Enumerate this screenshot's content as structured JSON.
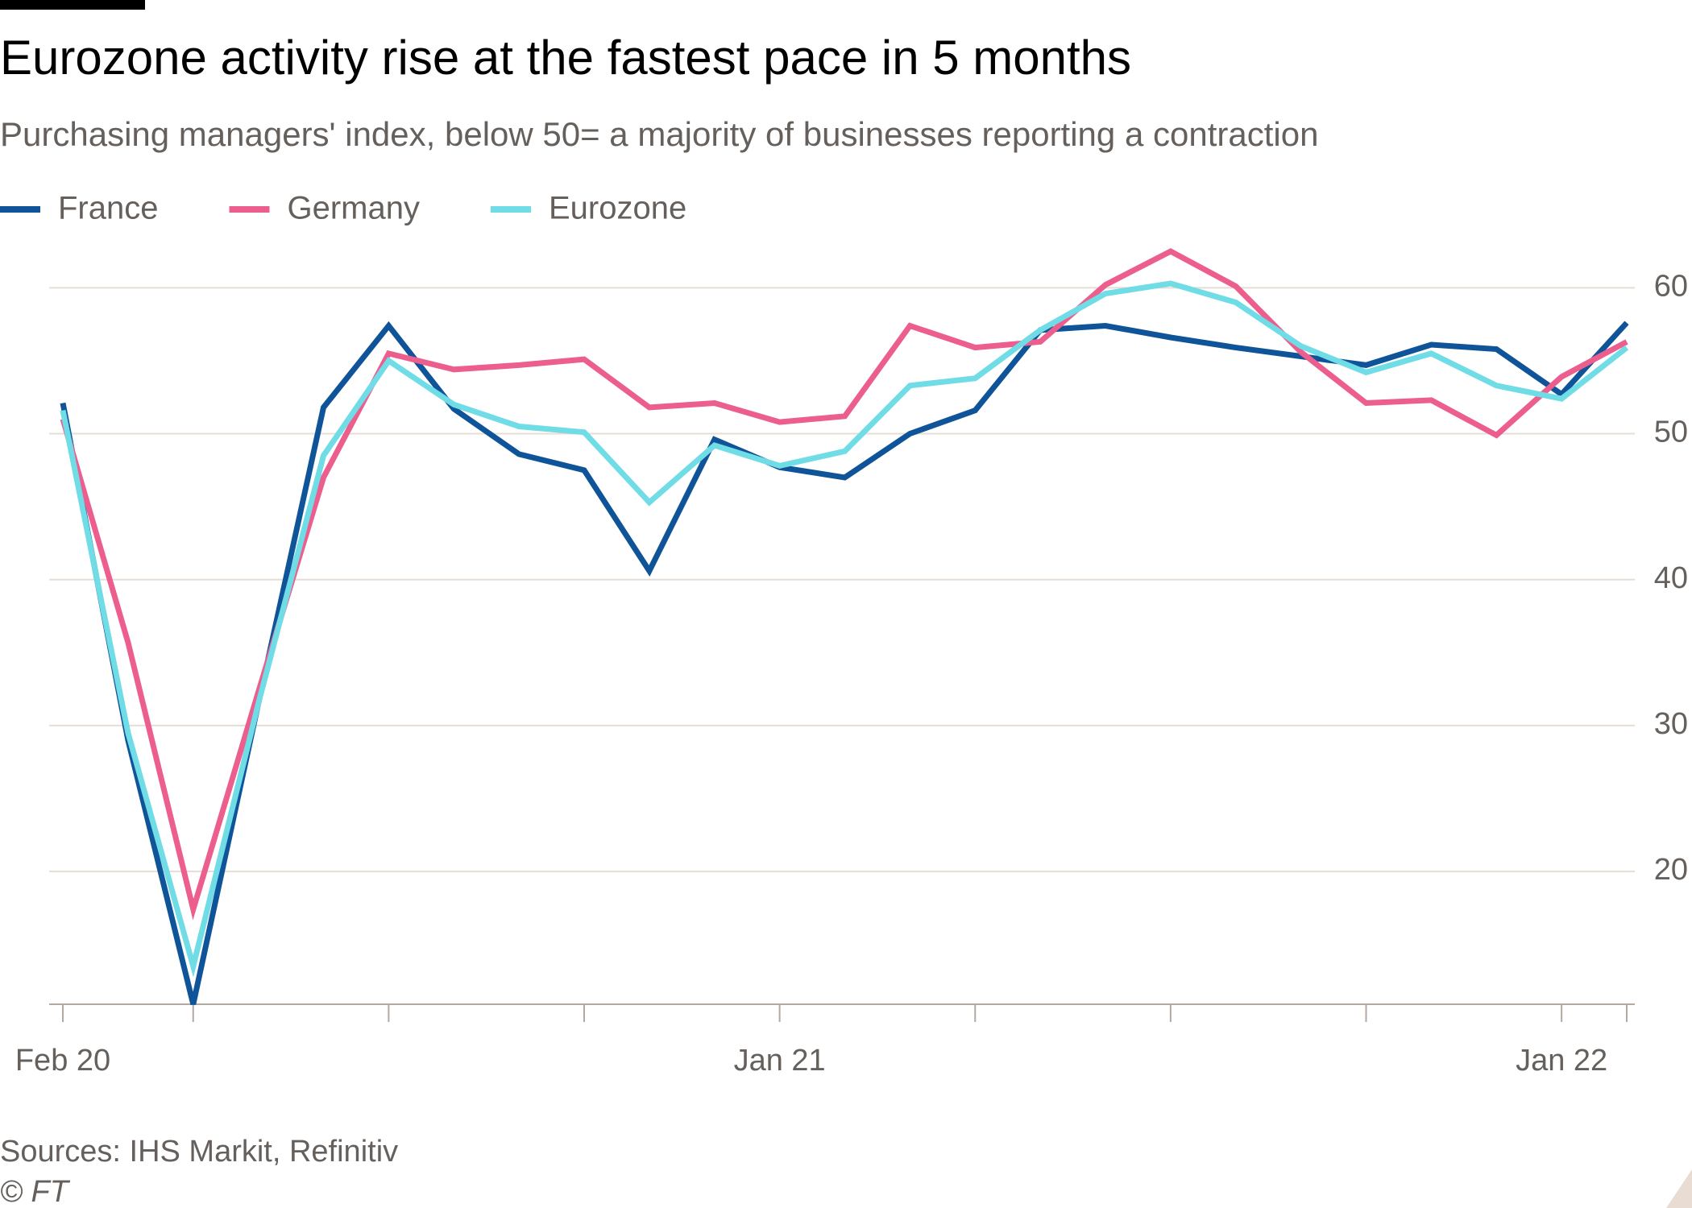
{
  "chart_data": {
    "type": "line",
    "title": "Eurozone activity rise at the fastest pace in 5 months",
    "subtitle": "Purchasing managers' index, below 50= a majority of businesses reporting a contraction",
    "source": "Sources: IHS Markit, Refinitiv",
    "credit": "© FT",
    "categories": [
      "Feb 20",
      null,
      null,
      null,
      null,
      null,
      null,
      null,
      null,
      null,
      null,
      "Jan 21",
      null,
      null,
      null,
      null,
      null,
      null,
      null,
      null,
      null,
      null,
      null,
      "Jan 22",
      null
    ],
    "series": [
      {
        "name": "France",
        "color": "#0f5499",
        "values": [
          52.1,
          29.0,
          10.9,
          31.5,
          51.8,
          57.4,
          51.7,
          48.6,
          47.5,
          40.6,
          49.6,
          47.7,
          47.0,
          50.0,
          51.6,
          57.1,
          57.4,
          56.6,
          55.9,
          55.3,
          54.7,
          56.1,
          55.8,
          52.7,
          57.6
        ]
      },
      {
        "name": "Germany",
        "color": "#eb5e8d",
        "values": [
          51.0,
          35.7,
          17.4,
          32.3,
          47.0,
          55.5,
          54.4,
          54.7,
          55.1,
          51.8,
          52.1,
          50.8,
          51.2,
          57.4,
          55.9,
          56.3,
          60.2,
          62.5,
          60.1,
          55.6,
          52.1,
          52.3,
          49.9,
          53.9,
          56.3
        ]
      },
      {
        "name": "Eurozone",
        "color": "#70dce6",
        "values": [
          51.6,
          29.5,
          13.5,
          31.5,
          48.5,
          55.0,
          52.0,
          50.5,
          50.1,
          45.3,
          49.2,
          47.8,
          48.8,
          53.3,
          53.8,
          57.1,
          59.6,
          60.3,
          59.0,
          56.0,
          54.2,
          55.5,
          53.3,
          52.4,
          55.9
        ]
      }
    ],
    "ylim": [
      10.9,
      63
    ],
    "yticks": [
      20,
      30,
      40,
      50,
      60
    ],
    "grid": true,
    "legend": "top-left"
  }
}
